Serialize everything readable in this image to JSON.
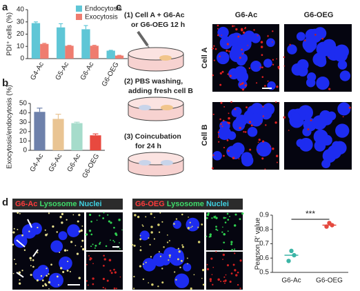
{
  "panels": {
    "a": "a",
    "b": "b",
    "c": "c",
    "d": "d"
  },
  "schematic": {
    "step1_line1": "(1) Cell A + G6-Ac",
    "step1_line2": "or G6-OEG 12 h",
    "step2_line1": "(2) PBS washing,",
    "step2_line2": "adding fresh cell B",
    "step3_line1": "(3) Coincubation",
    "step3_line2": "for 24 h"
  },
  "microscopy_c": {
    "columns": [
      "G6-Ac",
      "G6-OEG"
    ],
    "rows": [
      "Cell A",
      "Cell B"
    ]
  },
  "microscopy_d": [
    {
      "labels": [
        "G6-Ac",
        "Lysosome",
        "Nuclei"
      ]
    },
    {
      "labels": [
        "G6-OEG",
        "Lysosome",
        "Nuclei"
      ]
    }
  ],
  "chart_data": [
    {
      "type": "grouped-bar",
      "ylabel": "PDI⁺ cells (%)",
      "categories": [
        "G4-Ac",
        "G5-Ac",
        "G6-Ac",
        "G6-OEG"
      ],
      "series": [
        {
          "name": "Endocytosis",
          "color": "#5fc6d6",
          "values": [
            29,
            25.5,
            24,
            6.5
          ],
          "errors": [
            1,
            3,
            3,
            0.3
          ]
        },
        {
          "name": "Exocytosis",
          "color": "#ef7c6f",
          "values": [
            12,
            10.5,
            10.5,
            2.5
          ],
          "errors": [
            0.5,
            0.3,
            0.4,
            0.2
          ]
        }
      ],
      "ylim": [
        0,
        40
      ],
      "yticks": [
        0,
        10,
        20,
        30,
        40
      ]
    },
    {
      "type": "bar",
      "ylabel": "Exocytosis/endocytosis (%)",
      "categories": [
        "G4-Ac",
        "G5-Ac",
        "G6-Ac",
        "G6-OEG"
      ],
      "values": [
        41,
        33.5,
        29,
        16
      ],
      "errors": [
        4,
        5,
        1,
        1.5
      ],
      "colors": [
        "#6e81ab",
        "#e9c493",
        "#a6dccb",
        "#e8493f"
      ],
      "ylim": [
        0,
        50
      ],
      "yticks": [
        0,
        10,
        20,
        30,
        40,
        50
      ]
    },
    {
      "type": "dot",
      "ylabel": "Pearson R' value",
      "categories": [
        "G6-Ac",
        "G6-OEG"
      ],
      "colors": [
        "#3cb5a6",
        "#e5493f"
      ],
      "points": [
        [
          0.65,
          0.62,
          0.58
        ],
        [
          0.845,
          0.83,
          0.82
        ]
      ],
      "means": [
        0.62,
        0.83
      ],
      "annotation": "***",
      "ylim": [
        0.5,
        0.9
      ],
      "yticks": [
        0.5,
        0.6,
        0.7,
        0.8,
        0.9
      ]
    }
  ]
}
